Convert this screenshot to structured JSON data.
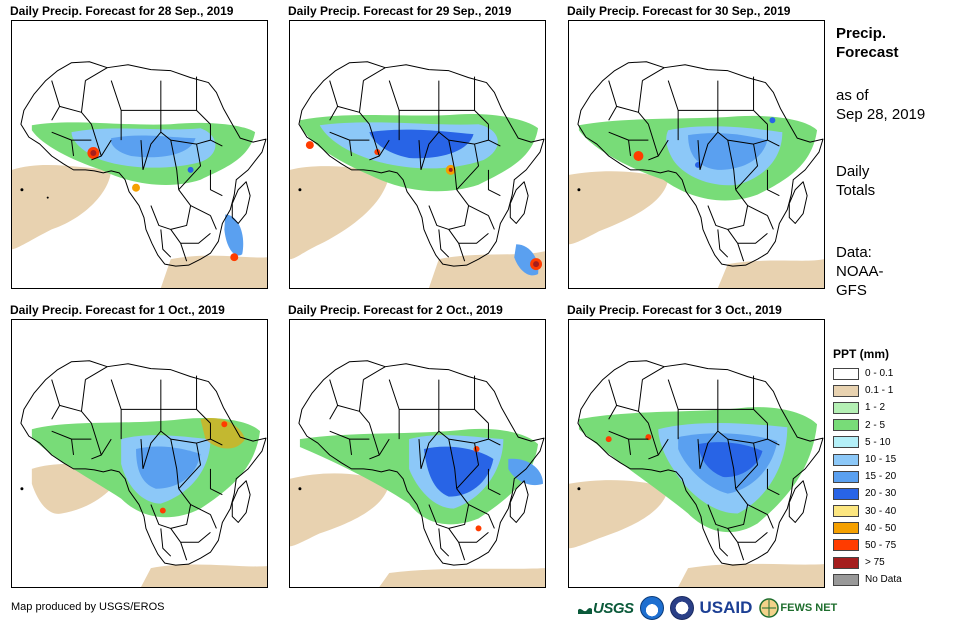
{
  "panels": [
    {
      "title": "Daily Precip. Forecast for 28 Sep., 2019"
    },
    {
      "title": "Daily Precip. Forecast for 29 Sep., 2019"
    },
    {
      "title": "Daily Precip. Forecast for 30 Sep., 2019"
    },
    {
      "title": "Daily Precip. Forecast for 1 Oct., 2019"
    },
    {
      "title": "Daily Precip. Forecast for 2 Oct., 2019"
    },
    {
      "title": "Daily Precip. Forecast for 3 Oct., 2019"
    }
  ],
  "side": {
    "title_line1": "Precip.",
    "title_line2": "Forecast",
    "asof_line1": "as of",
    "asof_line2": "Sep 28, 2019",
    "totals_line1": "Daily",
    "totals_line2": "Totals",
    "data_line1": "Data:",
    "data_line2": "NOAA-",
    "data_line3": "GFS"
  },
  "legend": {
    "title": "PPT (mm)",
    "items": [
      {
        "label": "0 - 0.1",
        "color": "#ffffff"
      },
      {
        "label": "0.1 - 1",
        "color": "#e8d2b0"
      },
      {
        "label": "1 - 2",
        "color": "#b4f0b4"
      },
      {
        "label": "2 - 5",
        "color": "#78dc78"
      },
      {
        "label": "5 - 10",
        "color": "#b4f0f8"
      },
      {
        "label": "10 - 15",
        "color": "#8cc8f8"
      },
      {
        "label": "15 - 20",
        "color": "#5aa0f0"
      },
      {
        "label": "20 - 30",
        "color": "#2864e6"
      },
      {
        "label": "30 - 40",
        "color": "#fce680"
      },
      {
        "label": "40 - 50",
        "color": "#f5a000"
      },
      {
        "label": "50 - 75",
        "color": "#ff3c00"
      },
      {
        "label": "> 75",
        "color": "#a51e1e"
      },
      {
        "label": "No Data",
        "color": "#999999"
      }
    ]
  },
  "footer": {
    "credit": "Map produced by USGS/EROS",
    "logo_usgs": "USGS",
    "logo_usaid": "USAID",
    "logo_fews": "FEWS NET"
  }
}
